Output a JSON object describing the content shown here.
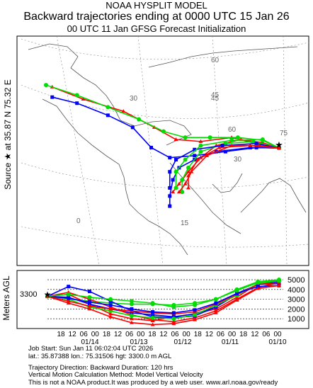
{
  "header": {
    "line1": "NOAA HYSPLIT MODEL",
    "line2": "Backward trajectories ending at 0000 UTC 15 Jan 26",
    "line3": "00 UTC 11 Jan    GFSG  Forecast Initialization"
  },
  "side_label": "Source ★ at   35.87 N   75.32 E",
  "map": {
    "lat_labels": [
      "60",
      "45",
      "30",
      "15",
      "0"
    ],
    "lon_labels": [
      "45",
      "60",
      "75",
      "30"
    ],
    "source_marker": "★"
  },
  "colors": {
    "red": "#ff0000",
    "blue": "#0000ff",
    "green": "#00dd00"
  },
  "chart_data": [
    {
      "type": "line",
      "title": "Backward trajectories (map)",
      "source": {
        "lat": 35.87,
        "lon": 75.32
      },
      "series": [
        {
          "name": "",
          "color": "red",
          "points": [
            [
              75.3,
              35.9
            ],
            [
              70,
              37.2
            ],
            [
              63,
              38
            ],
            [
              55,
              36.5
            ],
            [
              50,
              33.5
            ],
            [
              46,
              30
            ],
            [
              43,
              27
            ],
            [
              41,
              25
            ]
          ]
        },
        {
          "name": "",
          "color": "red",
          "points": [
            [
              75.3,
              35.9
            ],
            [
              68,
              37
            ],
            [
              60,
              38.5
            ],
            [
              50,
              37.5
            ],
            [
              42,
              38
            ],
            [
              35,
              41
            ],
            [
              25,
              45
            ],
            [
              12,
              48
            ],
            [
              2,
              51
            ]
          ]
        },
        {
          "name": "",
          "color": "green",
          "points": [
            [
              75.3,
              35.9
            ],
            [
              70,
              37.8
            ],
            [
              62,
              38.5
            ],
            [
              53,
              38.5
            ],
            [
              45,
              38.5
            ],
            [
              38,
              40
            ],
            [
              30,
              43
            ],
            [
              20,
              46
            ],
            [
              10,
              49
            ],
            [
              0,
              51.5
            ]
          ]
        },
        {
          "name": "",
          "color": "blue",
          "points": [
            [
              75.3,
              35.9
            ],
            [
              68,
              36
            ],
            [
              58,
              35
            ],
            [
              48,
              34
            ],
            [
              40,
              33.5
            ],
            [
              34,
              36
            ],
            [
              28,
              41
            ],
            [
              20,
              44
            ],
            [
              10,
              47
            ],
            [
              2,
              48.5
            ]
          ]
        },
        {
          "name": "",
          "color": "blue",
          "points": [
            [
              75.3,
              35.9
            ],
            [
              66,
              36
            ],
            [
              55,
              35
            ],
            [
              48,
              33
            ],
            [
              43,
              31
            ],
            [
              41,
              28
            ],
            [
              40,
              24
            ],
            [
              40,
              21.5
            ]
          ]
        },
        {
          "name": "",
          "color": "green",
          "points": [
            [
              75.3,
              35.9
            ],
            [
              67,
              37.5
            ],
            [
              58,
              37
            ],
            [
              50,
              35
            ],
            [
              46,
              31
            ],
            [
              44,
              28
            ],
            [
              44,
              25
            ]
          ]
        },
        {
          "name": "",
          "color": "red",
          "points": [
            [
              75.3,
              35.9
            ],
            [
              66,
              36.5
            ],
            [
              56,
              36
            ],
            [
              49,
              33
            ],
            [
              46,
              29
            ],
            [
              46,
              26
            ]
          ]
        },
        {
          "name": "",
          "color": "blue",
          "points": [
            [
              75.3,
              35.9
            ],
            [
              68,
              37
            ],
            [
              57,
              36.5
            ],
            [
              48,
              35.5
            ],
            [
              42,
              33
            ],
            [
              40,
              30
            ],
            [
              40,
              26
            ]
          ]
        },
        {
          "name": "",
          "color": "green",
          "points": [
            [
              75.3,
              35.9
            ],
            [
              70,
              38
            ],
            [
              60,
              37.8
            ],
            [
              50,
              36.5
            ],
            [
              45,
              33
            ],
            [
              42,
              30
            ],
            [
              42,
              26
            ]
          ]
        },
        {
          "name": "",
          "color": "red",
          "points": [
            [
              75.3,
              35.9
            ],
            [
              69,
              36.5
            ],
            [
              60,
              36.5
            ],
            [
              52,
              34
            ],
            [
              47,
              30
            ],
            [
              45,
              27
            ],
            [
              43,
              25
            ]
          ]
        }
      ]
    },
    {
      "type": "line",
      "ylabel": "Meters AGL",
      "start_height_label": "3300",
      "yticks": [
        1000,
        2000,
        3000,
        4000,
        5000
      ],
      "ylim": [
        0,
        5800
      ],
      "xlabels_time": [
        "18",
        "12",
        "06",
        "00",
        "18",
        "12",
        "06",
        "00",
        "18",
        "12",
        "06",
        "00",
        "18",
        "12",
        "06",
        "00",
        "18",
        "12",
        "06",
        "00"
      ],
      "xlabels_date": [
        "01/14",
        "01/13",
        "01/12",
        "01/11",
        "01/10"
      ],
      "series": [
        {
          "name": "",
          "color": "red",
          "values": [
            3300,
            3500,
            2500,
            1500,
            1000,
            800,
            1200,
            1500,
            2000,
            3200,
            4600,
            5000
          ]
        },
        {
          "name": "",
          "color": "blue",
          "values": [
            3300,
            3200,
            2500,
            2000,
            1600,
            1400,
            1200,
            1500,
            2200,
            3500,
            4500,
            4800
          ]
        },
        {
          "name": "",
          "color": "green",
          "values": [
            3300,
            3000,
            2800,
            2600,
            2500,
            2500,
            2400,
            2600,
            3000,
            4000,
            4800,
            5000
          ]
        },
        {
          "name": "",
          "color": "red",
          "values": [
            3300,
            3700,
            3000,
            2200,
            1400,
            900,
            700,
            1100,
            1800,
            3000,
            4200,
            4700
          ]
        },
        {
          "name": "",
          "color": "blue",
          "values": [
            3300,
            4300,
            3800,
            2800,
            1800,
            1200,
            1100,
            1300,
            2200,
            3600,
            4500,
            4600
          ]
        },
        {
          "name": "",
          "color": "green",
          "values": [
            3300,
            3000,
            2200,
            1800,
            1300,
            1100,
            1000,
            1400,
            2400,
            3400,
            4600,
            4900
          ]
        },
        {
          "name": "",
          "color": "red",
          "values": [
            3300,
            2800,
            2300,
            2000,
            1800,
            1600,
            1500,
            1700,
            2500,
            3500,
            4500,
            4700
          ]
        },
        {
          "name": "",
          "color": "blue",
          "values": [
            3300,
            3100,
            2700,
            2400,
            2000,
            1700,
            1600,
            1900,
            2600,
            3600,
            4300,
            4400
          ]
        },
        {
          "name": "",
          "color": "green",
          "values": [
            3300,
            3500,
            3200,
            3000,
            2800,
            2600,
            2200,
            2400,
            3000,
            3900,
            4700,
            4900
          ]
        },
        {
          "name": "",
          "color": "red",
          "values": [
            3300,
            2600,
            2000,
            1200,
            600,
            400,
            500,
            900,
            1600,
            2900,
            4100,
            4400
          ]
        }
      ]
    }
  ],
  "footer": {
    "job": "Job Start: Sun Jan 11 06:02:04 UTC 2026",
    "coords": "lat.: 35.87388   lon.: 75.31506    hgt: 3300.0 m AGL",
    "direction": "Trajectory Direction: Backward       Duration: 120 hrs",
    "vertical": "Vertical Motion Calculation Method: Model Vertical Velocity",
    "disclaimer": "This is not a NOAA product.It was produced by a web user.  www.arl.noaa.gov/ready"
  }
}
